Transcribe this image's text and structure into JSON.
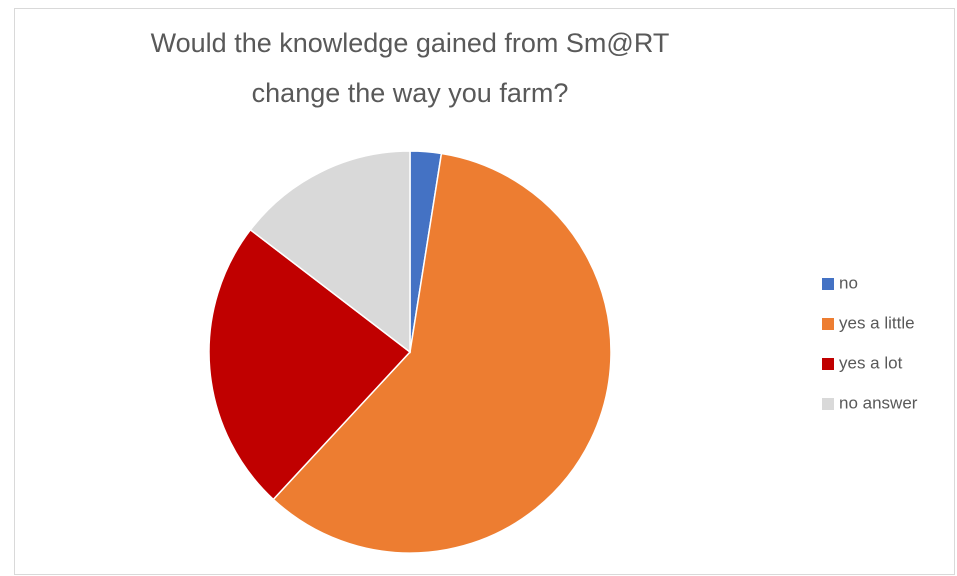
{
  "chart_data": {
    "type": "pie",
    "title": [
      "Would the knowledge gained from Sm@RT",
      "change the way you farm?"
    ],
    "categories": [
      "no",
      "yes a little",
      "yes a lot",
      "no answer"
    ],
    "values": [
      2.5,
      59.4,
      23.5,
      14.6
    ],
    "colors": [
      "#4472c4",
      "#ed7d31",
      "#c00000",
      "#d9d9d9"
    ],
    "legend": "right"
  }
}
